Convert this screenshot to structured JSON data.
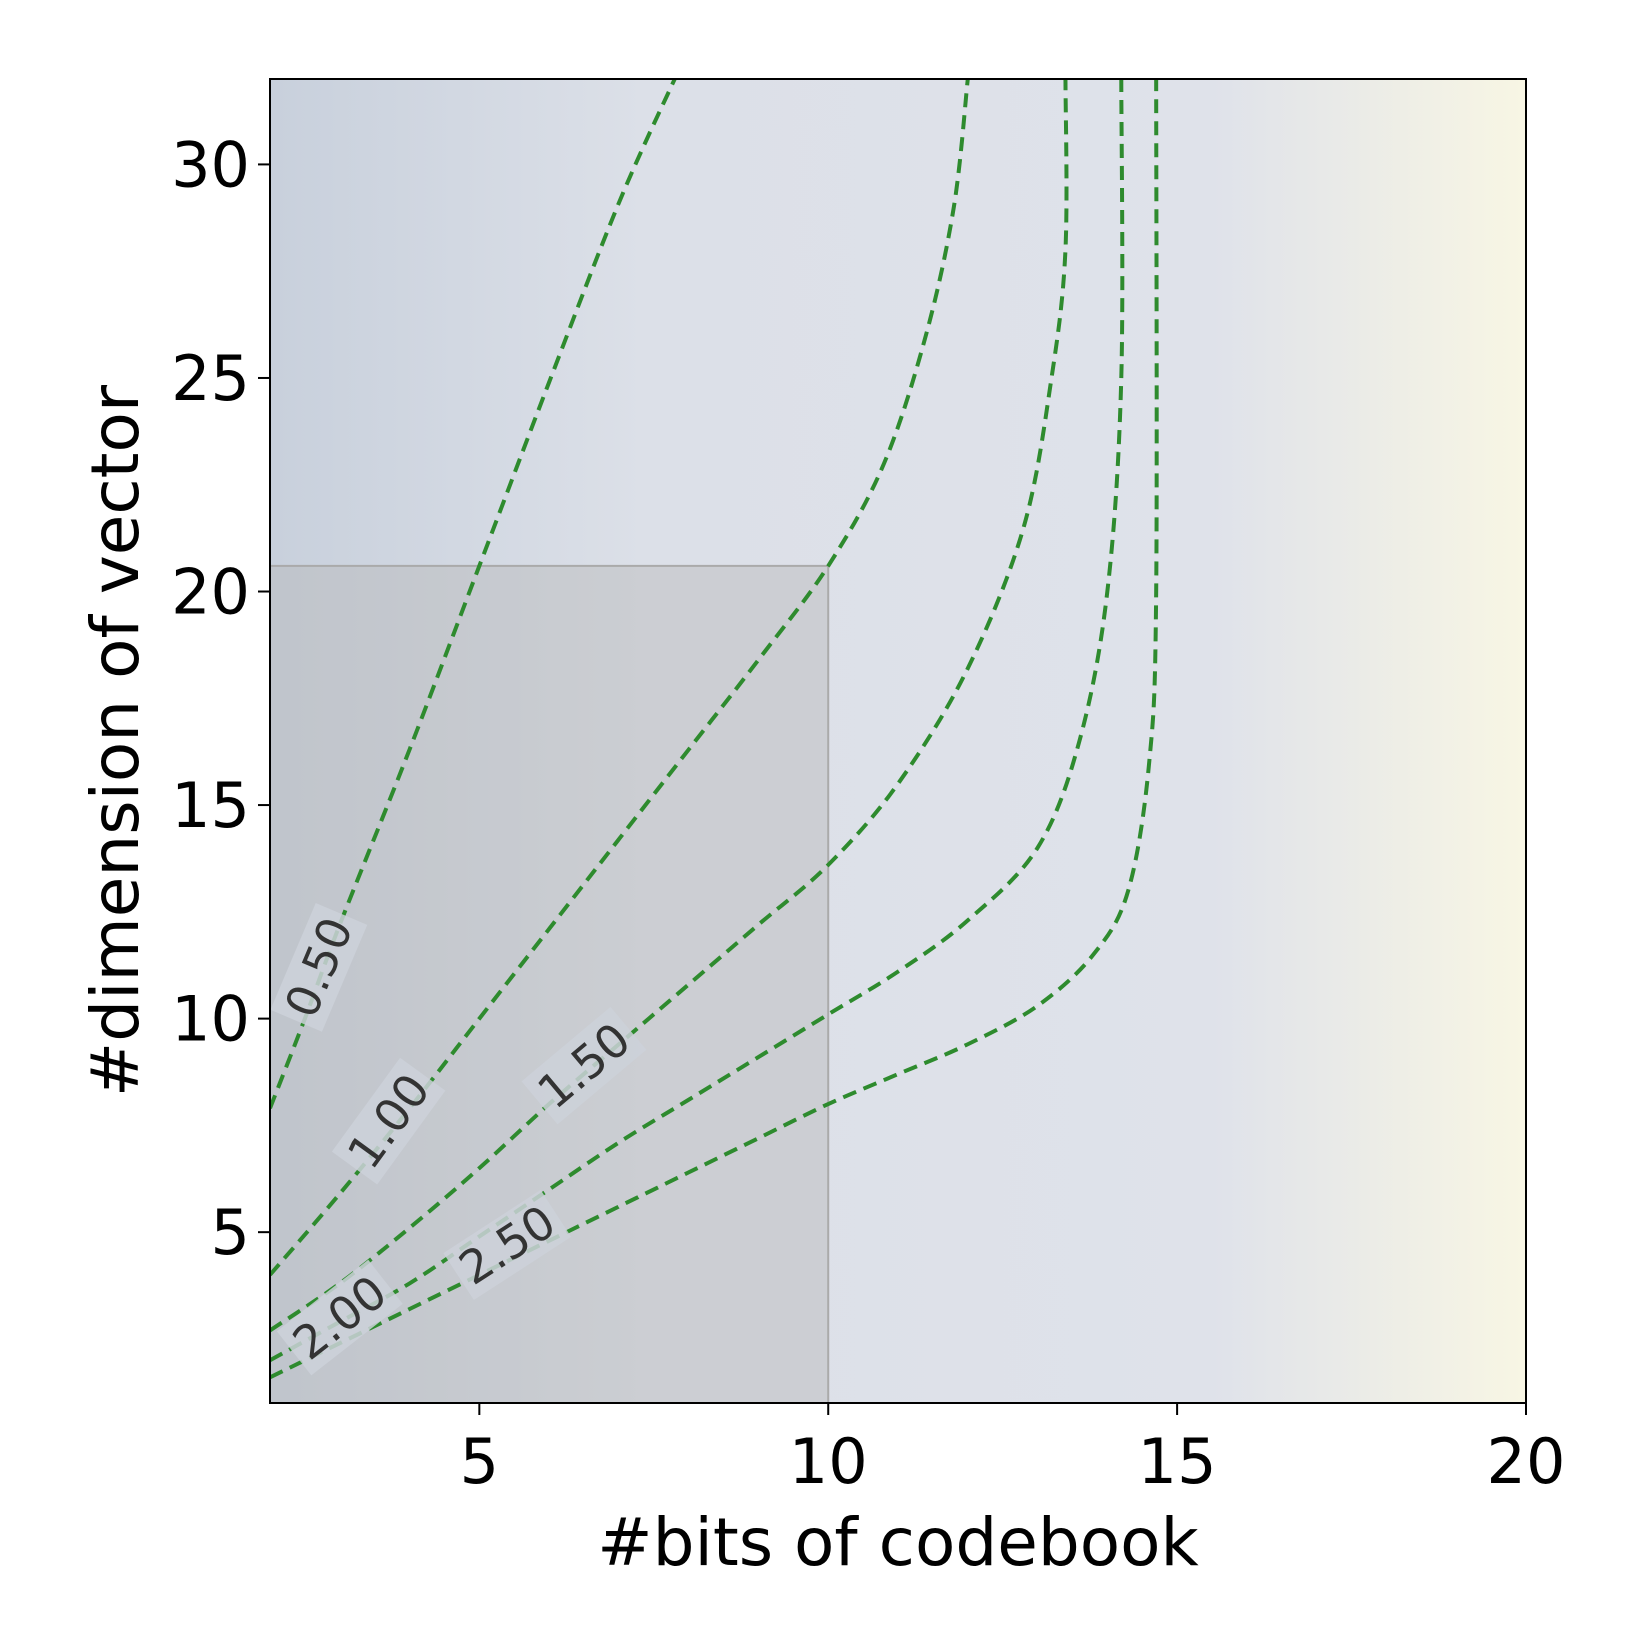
{
  "chart_data": {
    "type": "contour",
    "title": "",
    "xlabel": "#bits of codebook",
    "ylabel": "#dimension of vector",
    "xlim": [
      2,
      20
    ],
    "ylim": [
      1,
      32
    ],
    "x_ticks": [
      5,
      10,
      15,
      20
    ],
    "y_ticks": [
      5,
      10,
      15,
      20,
      25,
      30
    ],
    "x_tick_labels": [
      "5",
      "10",
      "15",
      "20"
    ],
    "y_tick_labels": [
      "5",
      "10",
      "15",
      "20",
      "25",
      "30"
    ],
    "grid": false,
    "background_gradient": {
      "colors": [
        "#c8d0dc",
        "#dce0e8",
        "#dfe2ea",
        "#f8f6e4"
      ],
      "direction": "increasing toward right"
    },
    "highlight_region": {
      "x": [
        2,
        10
      ],
      "y": [
        1,
        20.6
      ],
      "color": "#b5b5b5"
    },
    "contour_color": "#2e8b2e",
    "contours": [
      {
        "level": "0.50",
        "points": [
          [
            2.0,
            7.9
          ],
          [
            2.5,
            10.0
          ],
          [
            3.0,
            12.2
          ],
          [
            4.0,
            16.3
          ],
          [
            5.0,
            20.6
          ],
          [
            6.0,
            24.9
          ],
          [
            7.0,
            29.1
          ],
          [
            7.8,
            32.0
          ]
        ]
      },
      {
        "level": "1.00",
        "points": [
          [
            2.0,
            4.0
          ],
          [
            3.0,
            5.9
          ],
          [
            4.0,
            7.9
          ],
          [
            5.0,
            10.0
          ],
          [
            6.0,
            12.1
          ],
          [
            7.0,
            14.2
          ],
          [
            8.0,
            16.3
          ],
          [
            9.0,
            18.4
          ],
          [
            10.0,
            20.6
          ],
          [
            10.8,
            23.0
          ],
          [
            11.4,
            26.0
          ],
          [
            11.8,
            29.0
          ],
          [
            12.0,
            32.0
          ]
        ]
      },
      {
        "level": "1.50",
        "points": [
          [
            2.0,
            2.7
          ],
          [
            3.0,
            3.8
          ],
          [
            4.0,
            5.1
          ],
          [
            5.0,
            6.5
          ],
          [
            6.0,
            8.0
          ],
          [
            7.0,
            9.4
          ],
          [
            8.0,
            10.8
          ],
          [
            9.0,
            12.2
          ],
          [
            10.0,
            13.6
          ],
          [
            11.0,
            15.5
          ],
          [
            12.0,
            18.2
          ],
          [
            12.8,
            21.5
          ],
          [
            13.2,
            25.0
          ],
          [
            13.4,
            28.0
          ],
          [
            13.4,
            32.0
          ]
        ]
      },
      {
        "level": "2.00",
        "points": [
          [
            2.0,
            2.0
          ],
          [
            3.0,
            2.9
          ],
          [
            4.0,
            3.8
          ],
          [
            5.0,
            4.9
          ],
          [
            6.0,
            6.0
          ],
          [
            7.0,
            7.1
          ],
          [
            8.0,
            8.1
          ],
          [
            9.0,
            9.1
          ],
          [
            10.0,
            10.1
          ],
          [
            11.0,
            11.1
          ],
          [
            12.0,
            12.3
          ],
          [
            13.0,
            14.0
          ],
          [
            13.6,
            16.5
          ],
          [
            14.0,
            20.0
          ],
          [
            14.2,
            25.0
          ],
          [
            14.2,
            32.0
          ]
        ]
      },
      {
        "level": "2.50",
        "points": [
          [
            2.0,
            1.6
          ],
          [
            3.0,
            2.4
          ],
          [
            4.0,
            3.2
          ],
          [
            5.0,
            4.0
          ],
          [
            6.0,
            4.8
          ],
          [
            7.0,
            5.6
          ],
          [
            8.0,
            6.4
          ],
          [
            9.0,
            7.2
          ],
          [
            10.0,
            8.0
          ],
          [
            11.0,
            8.7
          ],
          [
            12.0,
            9.4
          ],
          [
            13.0,
            10.3
          ],
          [
            13.8,
            11.5
          ],
          [
            14.3,
            13.0
          ],
          [
            14.6,
            16.0
          ],
          [
            14.7,
            20.0
          ],
          [
            14.7,
            32.0
          ]
        ]
      }
    ],
    "contour_labels": [
      {
        "text": "0.50",
        "x": 2.7,
        "y": 11.2,
        "angle": -67
      },
      {
        "text": "1.00",
        "x": 3.7,
        "y": 7.6,
        "angle": -54
      },
      {
        "text": "1.50",
        "x": 6.5,
        "y": 8.9,
        "angle": -40
      },
      {
        "text": "2.00",
        "x": 3.0,
        "y": 3.0,
        "angle": -38
      },
      {
        "text": "2.50",
        "x": 5.4,
        "y": 4.7,
        "angle": -33
      }
    ]
  }
}
